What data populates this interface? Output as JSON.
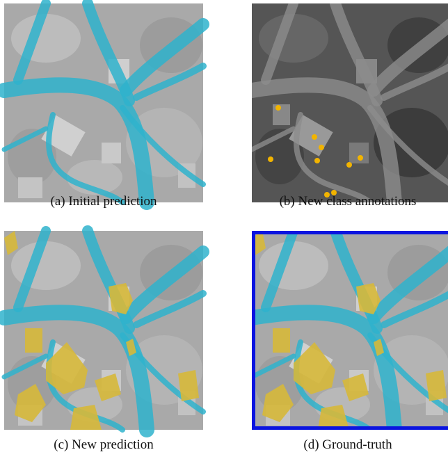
{
  "panels": [
    {
      "caption": "(a) Initial prediction"
    },
    {
      "caption": "(b) New class annotations"
    },
    {
      "caption": "(c) New prediction"
    },
    {
      "caption": "(d) Ground-truth"
    }
  ]
}
